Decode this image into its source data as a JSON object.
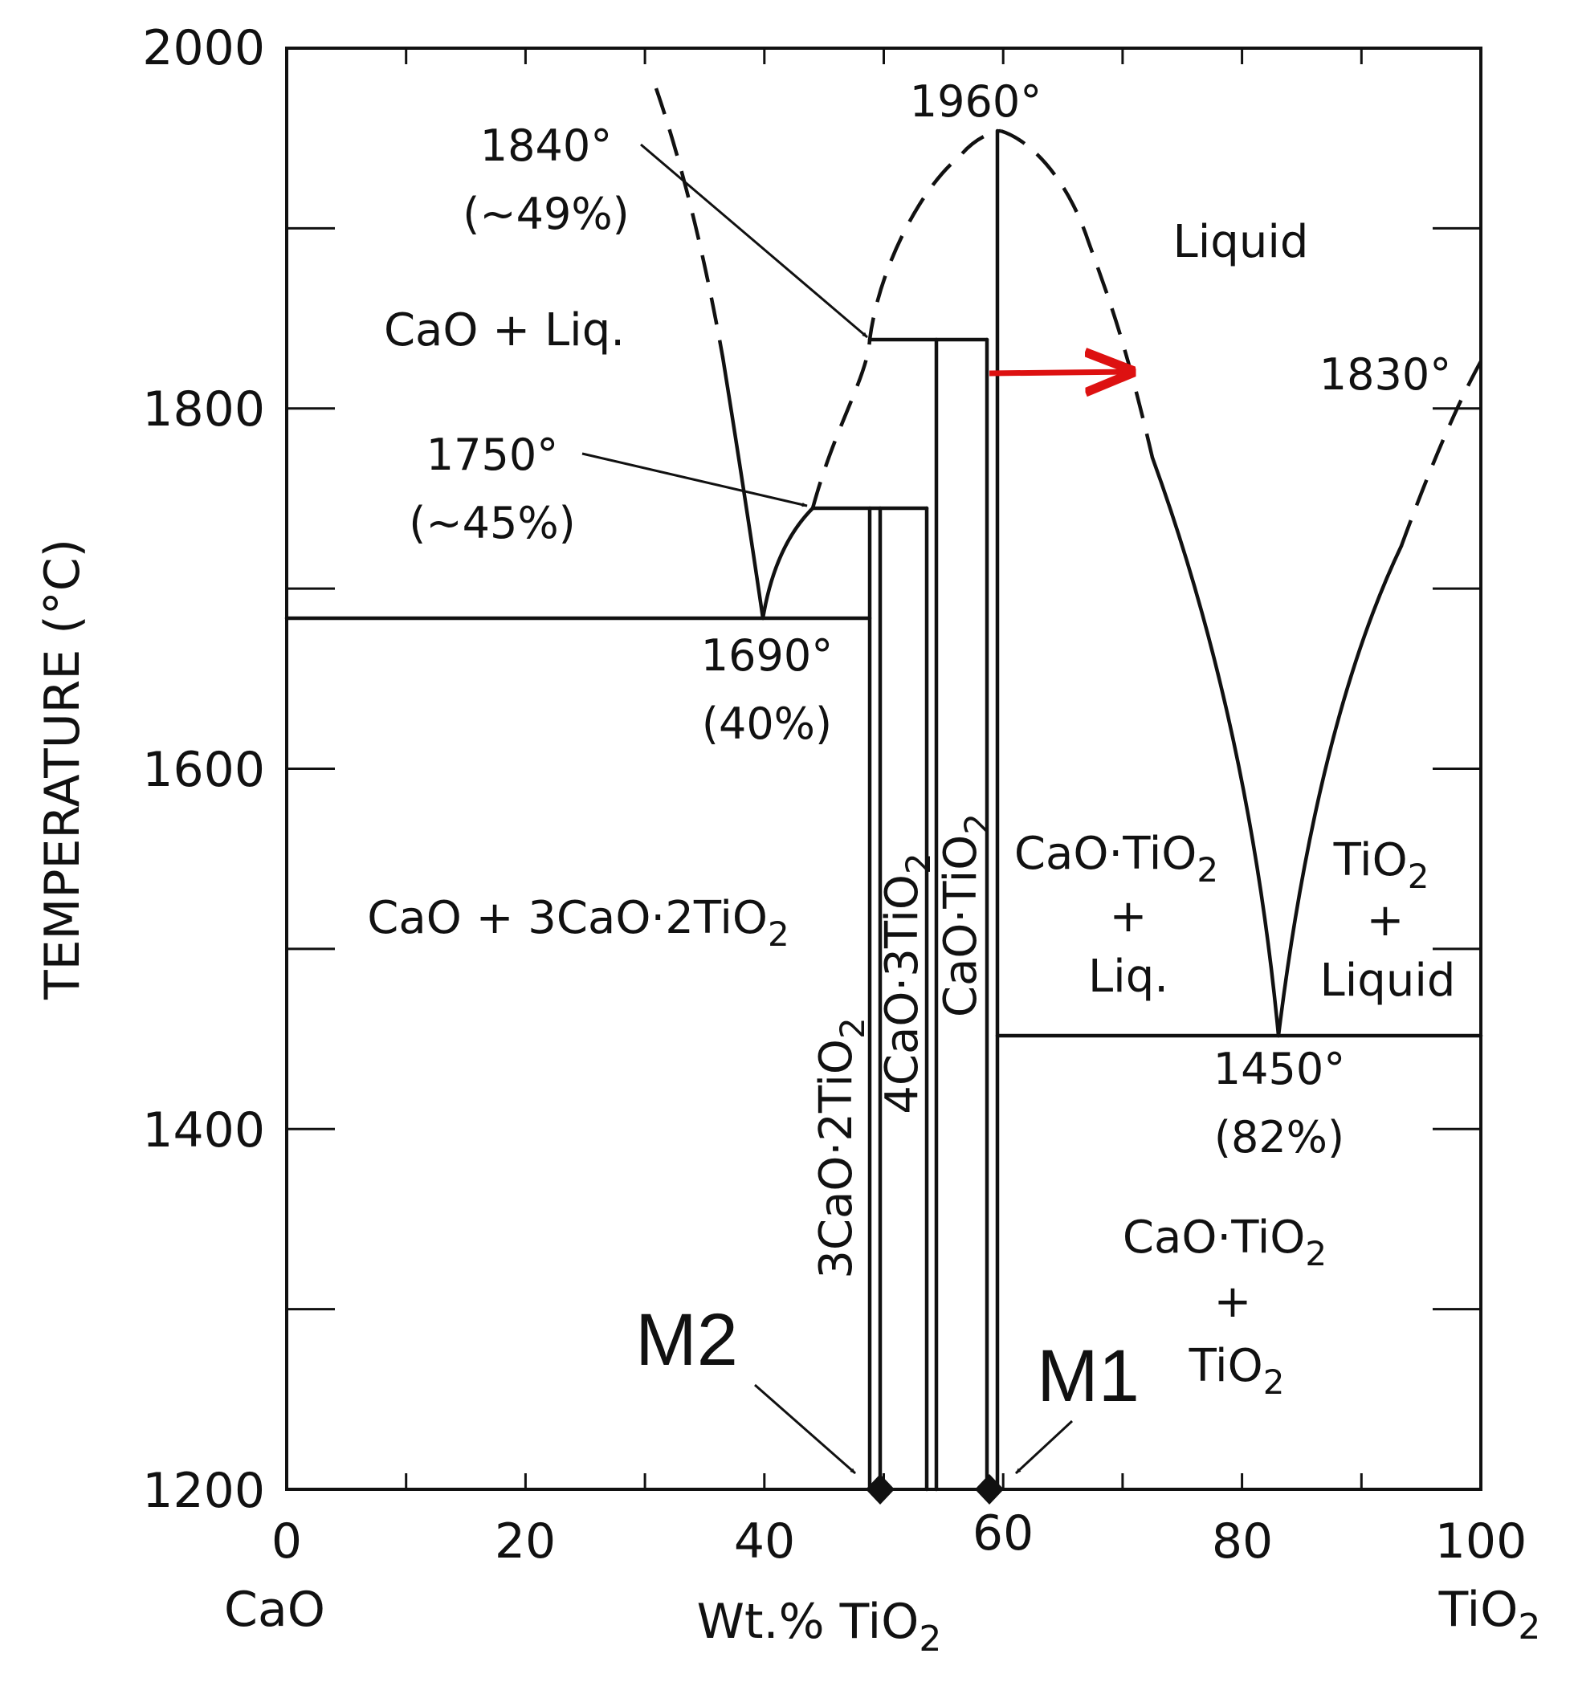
{
  "chart_data": {
    "type": "phase-diagram",
    "xlim": [
      0,
      100
    ],
    "ylim": [
      1200,
      2000
    ],
    "x_ticks": [
      "0",
      "20",
      "40",
      "60",
      "80",
      "100"
    ],
    "y_ticks": [
      "1200",
      "1400",
      "1600",
      "1800",
      "2000"
    ],
    "ylabel": "TEMPERATURE (°C)",
    "xlabel": {
      "main": "Wt.% TiO",
      "sub": "2"
    },
    "x_end_labels": {
      "left": "CaO",
      "right": {
        "main": "TiO",
        "sub": "2"
      }
    },
    "invariant_points": [
      {
        "label": "1840°",
        "sub": "(~49%)",
        "x": 49,
        "y": 1840
      },
      {
        "label": "1750°",
        "sub": "(~45%)",
        "x": 45,
        "y": 1750
      },
      {
        "label": "1690°",
        "sub": "(40%)",
        "x": 40,
        "y": 1690
      },
      {
        "label": "1960°",
        "x": 59,
        "y": 1960
      },
      {
        "label": "1830°",
        "x": 100,
        "y": 1830
      },
      {
        "label": "1450°",
        "sub": "(82%)",
        "x": 82,
        "y": 1450
      }
    ],
    "compounds": [
      {
        "name": "3CaO·2TiO2",
        "x": 49.3
      },
      {
        "name": "4CaO·3TiO2",
        "x": 54
      },
      {
        "name": "CaO·TiO2",
        "x": 59
      }
    ],
    "regions": {
      "liquid": "Liquid",
      "cao_liq": "CaO + Liq.",
      "cao_3c2t": "CaO + 3CaO·2TiO2",
      "ct_liq": {
        "l1": "CaO·TiO2",
        "l2": "+",
        "l3": "Liq."
      },
      "tio2_liquid": {
        "l1": "TiO2",
        "l2": "+",
        "l3": "Liquid"
      },
      "ct_tio2": {
        "l1": "CaO·TiO2",
        "l2": "+",
        "l3": "TiO2"
      }
    },
    "markers": [
      {
        "label": "M2",
        "x": 49.3,
        "y": 1200
      },
      {
        "label": "M1",
        "x": 59,
        "y": 1200
      }
    ],
    "annotation_arrow": {
      "from": [
        59,
        1822
      ],
      "to": [
        71,
        1822
      ],
      "color": "#dd1111"
    }
  }
}
